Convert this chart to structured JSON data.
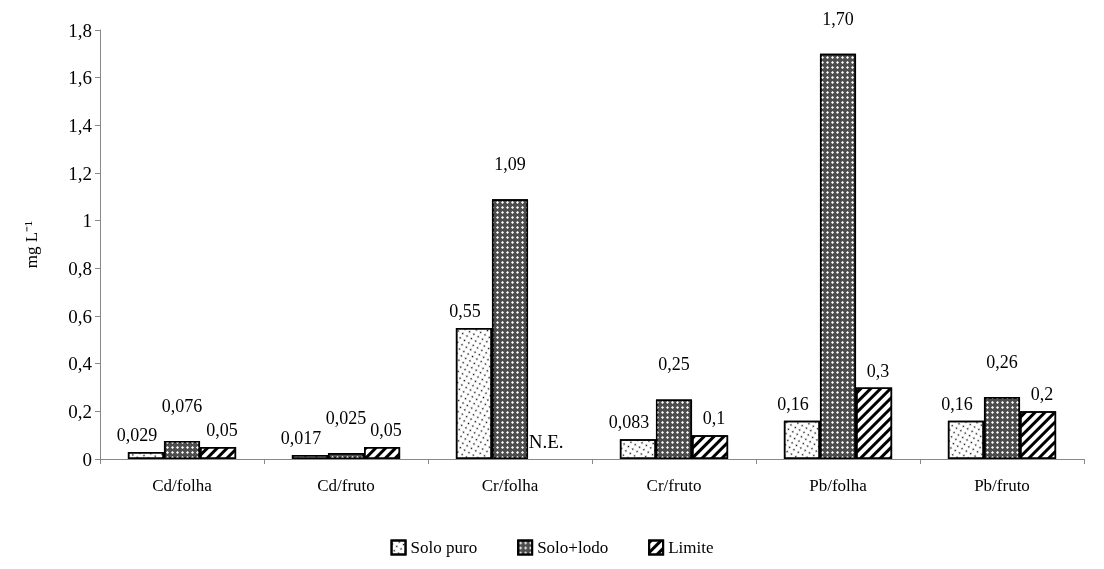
{
  "chart_data": {
    "type": "bar",
    "ylabel": "mg L⁻¹",
    "categories": [
      "Cd/folha",
      "Cd/fruto",
      "Cr/folha",
      "Cr/fruto",
      "Pb/folha",
      "Pb/fruto"
    ],
    "series": [
      {
        "name": "Solo puro",
        "color": "#ffffff",
        "values": [
          0.029,
          0.017,
          0.55,
          0.083,
          0.16,
          0.16
        ],
        "value_labels": [
          "0,029",
          "0,017",
          "0,55",
          "0,083",
          "0,16",
          "0,16"
        ]
      },
      {
        "name": "Solo+lodo",
        "color": "#4d4d4d",
        "values": [
          0.076,
          0.025,
          1.09,
          0.25,
          1.7,
          0.26
        ],
        "value_labels": [
          "0,076",
          "0,025",
          "1,09",
          "0,25",
          "1,70",
          "0,26"
        ]
      },
      {
        "name": "Limite",
        "color": "#ffffff",
        "values": [
          0.05,
          0.05,
          null,
          0.1,
          0.3,
          0.2
        ],
        "value_labels": [
          "0,05",
          "0,05",
          "N.E.",
          "0,1",
          "0,3",
          "0,2"
        ]
      }
    ],
    "ylim": [
      0,
      1.8
    ],
    "yticks": [
      0,
      {
        "value": 0.2,
        "label": "0,2"
      },
      {
        "value": 0.4,
        "label": "0,4"
      },
      {
        "value": 0.6,
        "label": "0,6"
      },
      {
        "value": 0.8,
        "label": "0,8"
      },
      1,
      {
        "value": 1.2,
        "label": "1,2"
      },
      {
        "value": 1.4,
        "label": "1,4"
      },
      {
        "value": 1.6,
        "label": "1,6"
      },
      {
        "value": 1.8,
        "label": "1,8"
      }
    ],
    "grid": false,
    "legend": "bottom"
  }
}
